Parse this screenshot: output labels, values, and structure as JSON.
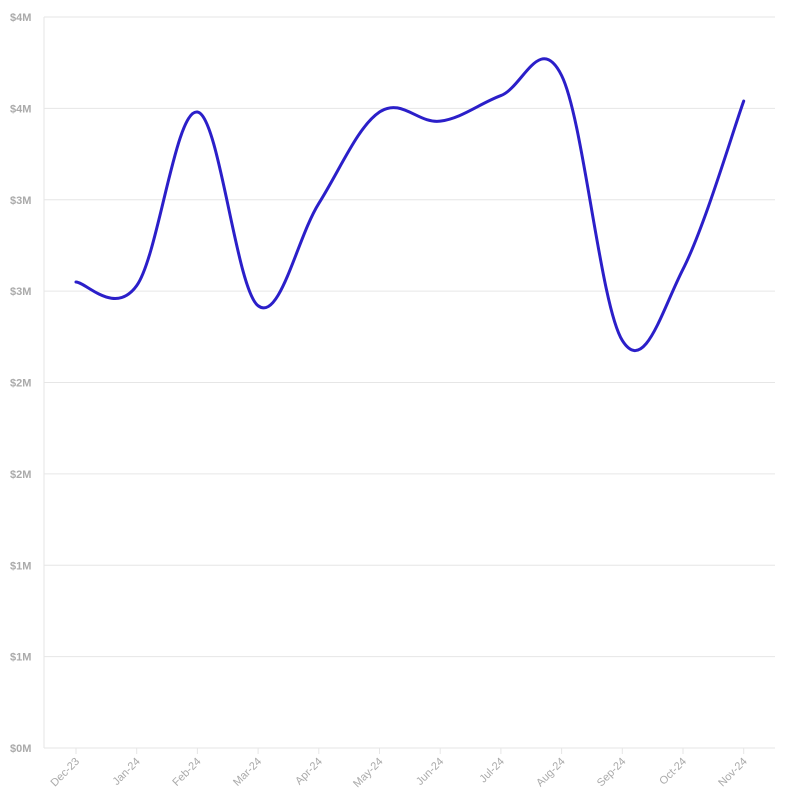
{
  "chart_data": {
    "type": "line",
    "categories": [
      "Dec-23",
      "Jan-24",
      "Feb-24",
      "Mar-24",
      "Apr-24",
      "May-24",
      "Jun-24",
      "Jul-24",
      "Aug-24",
      "Sep-24",
      "Oct-24",
      "Nov-24"
    ],
    "series": [
      {
        "values": [
          2.55,
          2.53,
          3.48,
          2.42,
          2.98,
          3.48,
          3.43,
          3.57,
          3.68,
          2.23,
          2.62,
          3.54
        ],
        "color": "#2b1fc9"
      }
    ],
    "ylim": [
      0,
      4
    ],
    "y_ticks": [
      0,
      0.5,
      1,
      1.5,
      2,
      2.5,
      3,
      3.5,
      4
    ],
    "y_tick_labels": [
      "$0M",
      "$1M",
      "$1M",
      "$2M",
      "$2M",
      "$3M",
      "$3M",
      "$4M",
      "$4M"
    ],
    "grid": true,
    "title": "",
    "xlabel": "",
    "ylabel": ""
  }
}
